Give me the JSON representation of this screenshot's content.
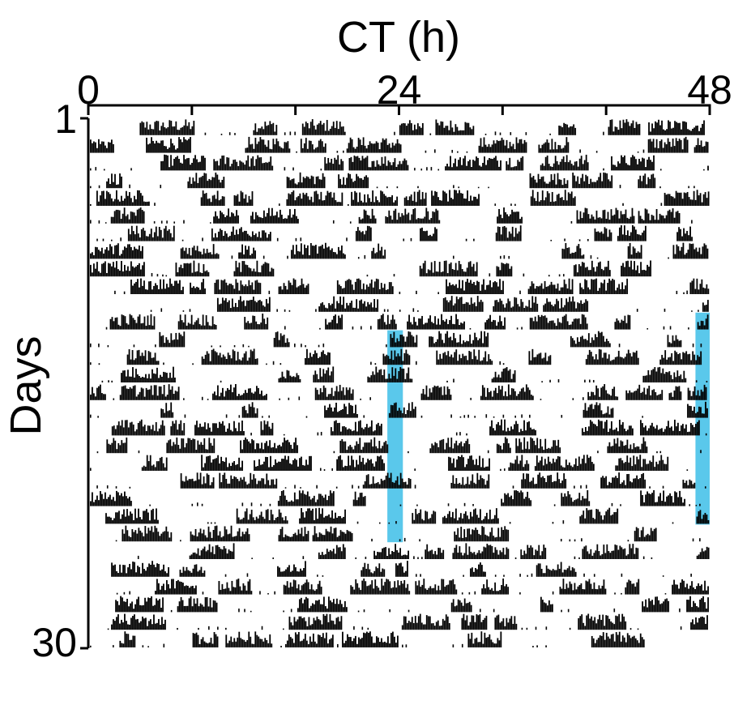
{
  "chart_data": {
    "type": "actogram",
    "xlabel": "CT (h)",
    "ylabel": "Days",
    "x_ticks": [
      "0",
      "24",
      "48"
    ],
    "y_ticks": [
      "1",
      "30"
    ],
    "x_range": [
      0,
      48
    ],
    "day_range": [
      1,
      30
    ],
    "plot_style": "double-plotted",
    "activity_color": "#000000",
    "highlight_color": "#5ac8eb",
    "highlights": [
      {
        "x_start": 23.1,
        "x_end": 24.3,
        "day_start": 13,
        "day_end": 25
      },
      {
        "x_start": 46.9,
        "x_end": 48.0,
        "day_start": 12,
        "day_end": 24
      }
    ]
  }
}
